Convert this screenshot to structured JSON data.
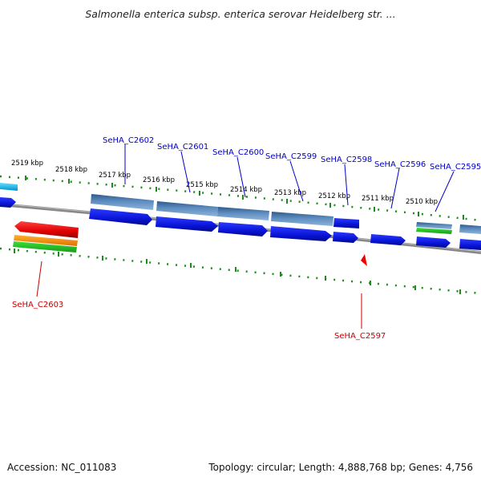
{
  "title": "Salmonella enterica subsp. enterica serovar Heidelberg str. ...",
  "footer": {
    "accession": "Accession: NC_011083",
    "topology": "Topology: circular; Length: 4,888,768 bp; Genes: 4,756"
  },
  "ruler": {
    "unit": "kbp",
    "ticks": [
      {
        "kbp": 2519,
        "label": "2519 kbp"
      },
      {
        "kbp": 2518,
        "label": "2518 kbp"
      },
      {
        "kbp": 2517,
        "label": "2517 kbp"
      },
      {
        "kbp": 2516,
        "label": "2516 kbp"
      },
      {
        "kbp": 2515,
        "label": "2515 kbp"
      },
      {
        "kbp": 2514,
        "label": "2514 kbp"
      },
      {
        "kbp": 2513,
        "label": "2513 kbp"
      },
      {
        "kbp": 2512,
        "label": "2512 kbp"
      },
      {
        "kbp": 2511,
        "label": "2511 kbp"
      },
      {
        "kbp": 2510,
        "label": "2510 kbp"
      }
    ]
  },
  "genes": [
    {
      "name": "SeHA_C2603",
      "strand": "minus",
      "color": "#dd0000"
    },
    {
      "name": "SeHA_C2602",
      "strand": "plus",
      "color": "#0000cc"
    },
    {
      "name": "SeHA_C2601",
      "strand": "plus",
      "color": "#0000cc"
    },
    {
      "name": "SeHA_C2600",
      "strand": "plus",
      "color": "#0000cc"
    },
    {
      "name": "SeHA_C2599",
      "strand": "plus",
      "color": "#0000cc"
    },
    {
      "name": "SeHA_C2598",
      "strand": "plus",
      "color": "#0000cc"
    },
    {
      "name": "SeHA_C2597",
      "strand": "minus",
      "color": "#dd0000"
    },
    {
      "name": "SeHA_C2596",
      "strand": "plus",
      "color": "#0000cc"
    },
    {
      "name": "SeHA_C2595",
      "strand": "plus",
      "color": "#0000cc"
    }
  ],
  "colors": {
    "plus_label": "#0000cc",
    "minus_label": "#cc0000",
    "cds_plus": "#0a14e6",
    "cds_plus_light": "#4a78b8",
    "cds_minus": "#ee0000",
    "ticks": "#1e8a1e",
    "backbone": "#777777"
  }
}
